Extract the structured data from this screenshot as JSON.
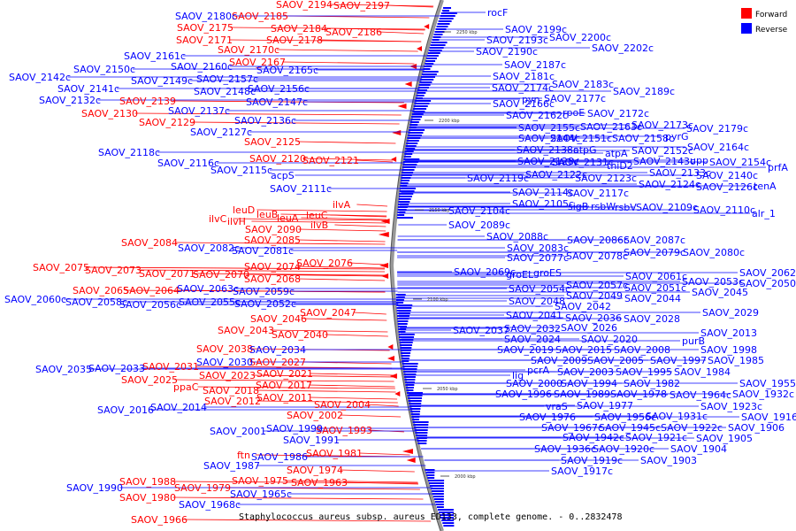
{
  "caption": "Staphylococcus aureus subsp. aureus ED133, complete genome. - 0..2832478",
  "legend": [
    {
      "label": "Forward",
      "color": "#ff0000"
    },
    {
      "label": "Reverse",
      "color": "#0000ff"
    }
  ],
  "axis_ticks": [
    {
      "label": "2250 kbp",
      "pos": 2250
    },
    {
      "label": "2200 kbp",
      "pos": 2200
    },
    {
      "label": "2150 kbp",
      "pos": 2150
    },
    {
      "label": "2100 kbp",
      "pos": 2100
    },
    {
      "label": "2050 kbp",
      "pos": 2050
    },
    {
      "label": "2000 kbp",
      "pos": 2000
    }
  ],
  "forward_labels": [
    "SAOV_2194",
    "SAOV_2197",
    "SAOV_2185",
    "SAOV_2184",
    "SAOV_2186",
    "SAOV_2175",
    "SAOV_2171",
    "SAOV_2178",
    "SAOV_2170c",
    "SAOV_2167",
    "SAOV_2139",
    "SAOV_2130",
    "SAOV_2129",
    "SAOV_2125",
    "SAOV_2120",
    "SAOV_2121",
    "ilvA",
    "leuD",
    "ilvC",
    "leuB",
    "ilvH",
    "leuA",
    "leuC",
    "ilvB",
    "SAOV_2090",
    "SAOV_2084",
    "SAOV_2085",
    "SAOV_2075",
    "SAOV_2073",
    "SAOV_2071",
    "SAOV_2070",
    "SAOV_2074",
    "SAOV_2076",
    "SAOV_2068",
    "SAOV_2065",
    "SAOV_2064",
    "SAOV_2046",
    "SAOV_2047",
    "SAOV_2043",
    "SAOV_2040",
    "SAOV_2038",
    "SAOV_2027",
    "SAOV_2031",
    "SAOV_2021",
    "SAOV_2025",
    "SAOV_2023",
    "ppaC",
    "SAOV_2017",
    "SAOV_2018",
    "SAOV_2012",
    "SAOV_2011",
    "SAOV_2004",
    "SAOV_2002",
    "SAOV_1993",
    "SAOV_1981",
    "ftn",
    "SAOV_1974",
    "SAOV_1988",
    "SAOV_1975",
    "SAOV_1963",
    "SAOV_1979",
    "SAOV_1980",
    "SAOV_1966"
  ],
  "reverse_labels": [
    "SAOV_2180c",
    "rocF",
    "SAOV_2199c",
    "SAOV_2193c",
    "SAOV_2200c",
    "SAOV_2190c",
    "SAOV_2202c",
    "SAOV_2161c",
    "SAOV_2160c",
    "SAOV_2187c",
    "SAOV_2165c",
    "SAOV_2150c",
    "SAOV_2142c",
    "SAOV_2149c",
    "SAOV_2157c",
    "SAOV_2181c",
    "SAOV_2183c",
    "SAOV_2141c",
    "SAOV_2148c",
    "SAOV_2156c",
    "SAOV_2174c",
    "SAOV_2189c",
    "pyn",
    "SAOV_2177c",
    "SAOV_2132c",
    "SAOV_2147c",
    "SAOV_2166c",
    "SAOV_2137c",
    "SAOV_2162c",
    "rpoE",
    "SAOV_2172c",
    "SAOV_2136c",
    "SAOV_2173c",
    "SAOV_2127c",
    "SAOV_2155c",
    "SAOV_2163c",
    "SAOV_2179c",
    "SAOV_2144c",
    "SAOV_2151c",
    "SAOV_2158c",
    "pyrG",
    "SAOV_2138c",
    "atpG",
    "atpA",
    "SAOV_2152c",
    "SAOV_2164c",
    "SAOV_2118c",
    "SAOV_2116c",
    "SAOV_2128c",
    "SAOV_2131c",
    "thiD2",
    "SAOV_2143c",
    "upp",
    "SAOV_2154c",
    "prfA",
    "SAOV_2115c",
    "SAOV_2122c",
    "SAOV_2123c",
    "SAOV_2133c",
    "acpS",
    "SAOV_2119c",
    "SAOV_2124c",
    "SAOV_2140c",
    "SAOV_2126c",
    "tenA",
    "SAOV_2111c",
    "SAOV_2114c",
    "SAOV_2117c",
    "SAOV_2105c",
    "sigB",
    "rsbW",
    "rsbV",
    "SAOV_2109c",
    "SAOV_2110c",
    "alr_1",
    "SAOV_2104c",
    "SAOV_2089c",
    "SAOV_2088c",
    "SAOV_2086c",
    "SAOV_2087c",
    "SAOV_2082c",
    "SAOV_2083c",
    "SAOV_2081c",
    "SAOV_2077c",
    "SAOV_2078c",
    "SAOV_2079c",
    "SAOV_2080c",
    "SAOV_2069c",
    "groEL",
    "groES",
    "SAOV_2062c",
    "SAOV_2061c",
    "SAOV_2053c",
    "SAOV_2050",
    "SAOV_2057c",
    "SAOV_2051c",
    "SAOV_2054c",
    "SAOV_2063c",
    "SAOV_2045",
    "SAOV_2059c",
    "SAOV_2049",
    "SAOV_2044",
    "SAOV_2060c",
    "SAOV_2058c",
    "SAOV_2056c",
    "SAOV_2055c",
    "SAOV_2052c",
    "SAOV_2048",
    "SAOV_2042",
    "SAOV_2041",
    "SAOV_2036",
    "SAOV_2028",
    "SAOV_2029",
    "SAOV_2037",
    "SAOV_2032",
    "SAOV_2026",
    "SAOV_2013",
    "SAOV_2024",
    "SAOV_2020",
    "purB",
    "SAOV_2034",
    "SAOV_2019",
    "SAOV_2015",
    "SAOV_2008",
    "SAOV_1998",
    "SAOV_2030",
    "SAOV_2009",
    "SAOV_2005",
    "SAOV_1997",
    "SAOV_1985",
    "SAOV_2035",
    "SAOV_2033",
    "lig",
    "pcrA",
    "SAOV_2003",
    "SAOV_1995",
    "SAOV_1984",
    "SAOV_2000",
    "SAOV_1994",
    "SAOV_1982",
    "SAOV_1955c",
    "SAOV_1996",
    "SAOV_1989",
    "SAOV_1978",
    "SAOV_1964c",
    "SAOV_1932c",
    "SAOV_2016",
    "SAOV_2014",
    "vraS",
    "SAOV_1977",
    "SAOV_1923c",
    "SAOV_1916c",
    "SAOV_1976",
    "SAOV_1956c",
    "SAOV_1931c",
    "SAOV_1999",
    "SAOV_1967c",
    "SAOV_1945c",
    "SAOV_1922c",
    "SAOV_1906",
    "SAOV_2001",
    "SAOV_1991",
    "SAOV_1942c",
    "SAOV_1921c",
    "SAOV_1905",
    "SAOV_1936c",
    "SAOV_1920c",
    "SAOV_1904",
    "SAOV_1986",
    "SAOV_1919c",
    "SAOV_1903",
    "SAOV_1987",
    "SAOV_1917c",
    "SAOV_1990",
    "SAOV_1965c",
    "SAOV_1968c"
  ]
}
